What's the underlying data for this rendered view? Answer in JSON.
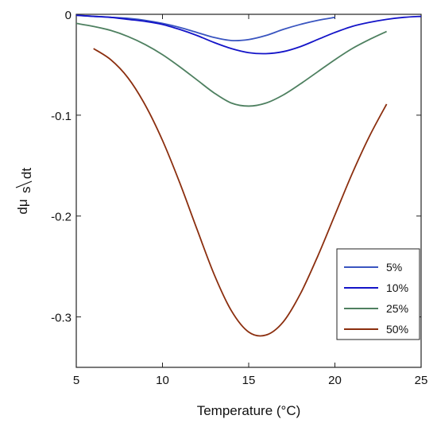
{
  "chart_data": {
    "type": "line",
    "xlabel": "Temperature (°C)",
    "ylabel_main": "dμ",
    "ylabel_sub": "s",
    "ylabel_den": "dt",
    "xlim": [
      5,
      25
    ],
    "ylim": [
      -0.35,
      0
    ],
    "x_ticks": [
      5,
      10,
      15,
      20,
      25
    ],
    "x_tick_labels": [
      "5",
      "10",
      "15",
      "20",
      "25"
    ],
    "y_ticks": [
      0,
      -0.1,
      -0.2,
      -0.3
    ],
    "y_tick_labels": [
      "0",
      "-0.1",
      "-0.2",
      "-0.3"
    ],
    "grid": false,
    "legend_position": "bottom-right",
    "series": [
      {
        "name": "5%",
        "color": "#3a55c0",
        "x": [
          5,
          6,
          7,
          8,
          9,
          10,
          11,
          12,
          13,
          14,
          15,
          16,
          17,
          18,
          19,
          20
        ],
        "y": [
          -0.001,
          -0.002,
          -0.003,
          -0.004,
          -0.006,
          -0.009,
          -0.013,
          -0.018,
          -0.023,
          -0.026,
          -0.025,
          -0.021,
          -0.015,
          -0.01,
          -0.006,
          -0.003
        ]
      },
      {
        "name": "10%",
        "color": "#1414c8",
        "x": [
          5,
          6,
          7,
          8,
          9,
          10,
          11,
          12,
          13,
          14,
          15,
          16,
          17,
          18,
          19,
          20,
          21,
          22,
          23,
          24,
          25
        ],
        "y": [
          -0.001,
          -0.002,
          -0.003,
          -0.005,
          -0.007,
          -0.01,
          -0.015,
          -0.021,
          -0.028,
          -0.034,
          -0.038,
          -0.039,
          -0.037,
          -0.032,
          -0.025,
          -0.018,
          -0.012,
          -0.008,
          -0.005,
          -0.003,
          -0.002
        ]
      },
      {
        "name": "25%",
        "color": "#4e8060",
        "x": [
          5,
          6,
          7,
          8,
          9,
          10,
          11,
          12,
          13,
          14,
          15,
          16,
          17,
          18,
          19,
          20,
          21,
          22,
          23
        ],
        "y": [
          -0.009,
          -0.012,
          -0.016,
          -0.022,
          -0.03,
          -0.04,
          -0.052,
          -0.065,
          -0.078,
          -0.088,
          -0.091,
          -0.088,
          -0.08,
          -0.069,
          -0.057,
          -0.045,
          -0.034,
          -0.025,
          -0.017
        ]
      },
      {
        "name": "50%",
        "color": "#8b2e0e",
        "x": [
          6,
          7,
          8,
          9,
          10,
          11,
          12,
          13,
          14,
          15,
          16,
          17,
          18,
          19,
          20,
          21,
          22,
          23
        ],
        "y": [
          -0.034,
          -0.045,
          -0.063,
          -0.09,
          -0.125,
          -0.167,
          -0.213,
          -0.258,
          -0.294,
          -0.315,
          -0.318,
          -0.305,
          -0.277,
          -0.24,
          -0.199,
          -0.158,
          -0.121,
          -0.089
        ]
      }
    ]
  }
}
